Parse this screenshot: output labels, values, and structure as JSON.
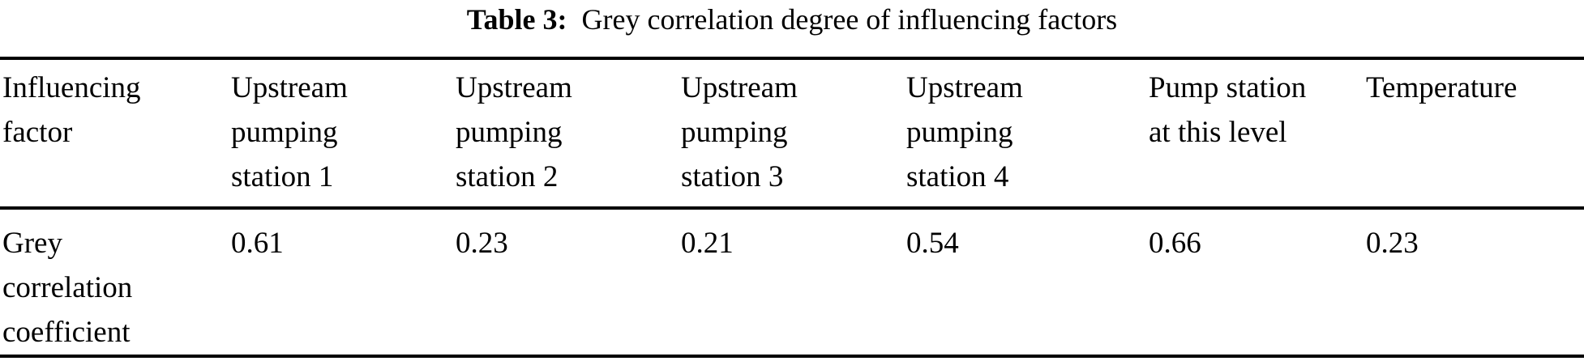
{
  "caption": {
    "label": "Table 3:",
    "text": "Grey correlation degree of influencing factors"
  },
  "table": {
    "header": {
      "influencing_factor": "Influencing\nfactor",
      "columns": [
        "Upstream\npumping\nstation 1",
        "Upstream\npumping\nstation 2",
        "Upstream\npumping\nstation 3",
        "Upstream\npumping\nstation 4",
        "Pump station\nat this level",
        "Temperature"
      ]
    },
    "rows": [
      {
        "label": "Grey\ncorrelation\ncoefficient",
        "values": [
          "0.61",
          "0.23",
          "0.21",
          "0.54",
          "0.66",
          "0.23"
        ]
      }
    ]
  },
  "colors": {
    "text": "#000000",
    "background": "#ffffff",
    "rule": "#000000"
  }
}
